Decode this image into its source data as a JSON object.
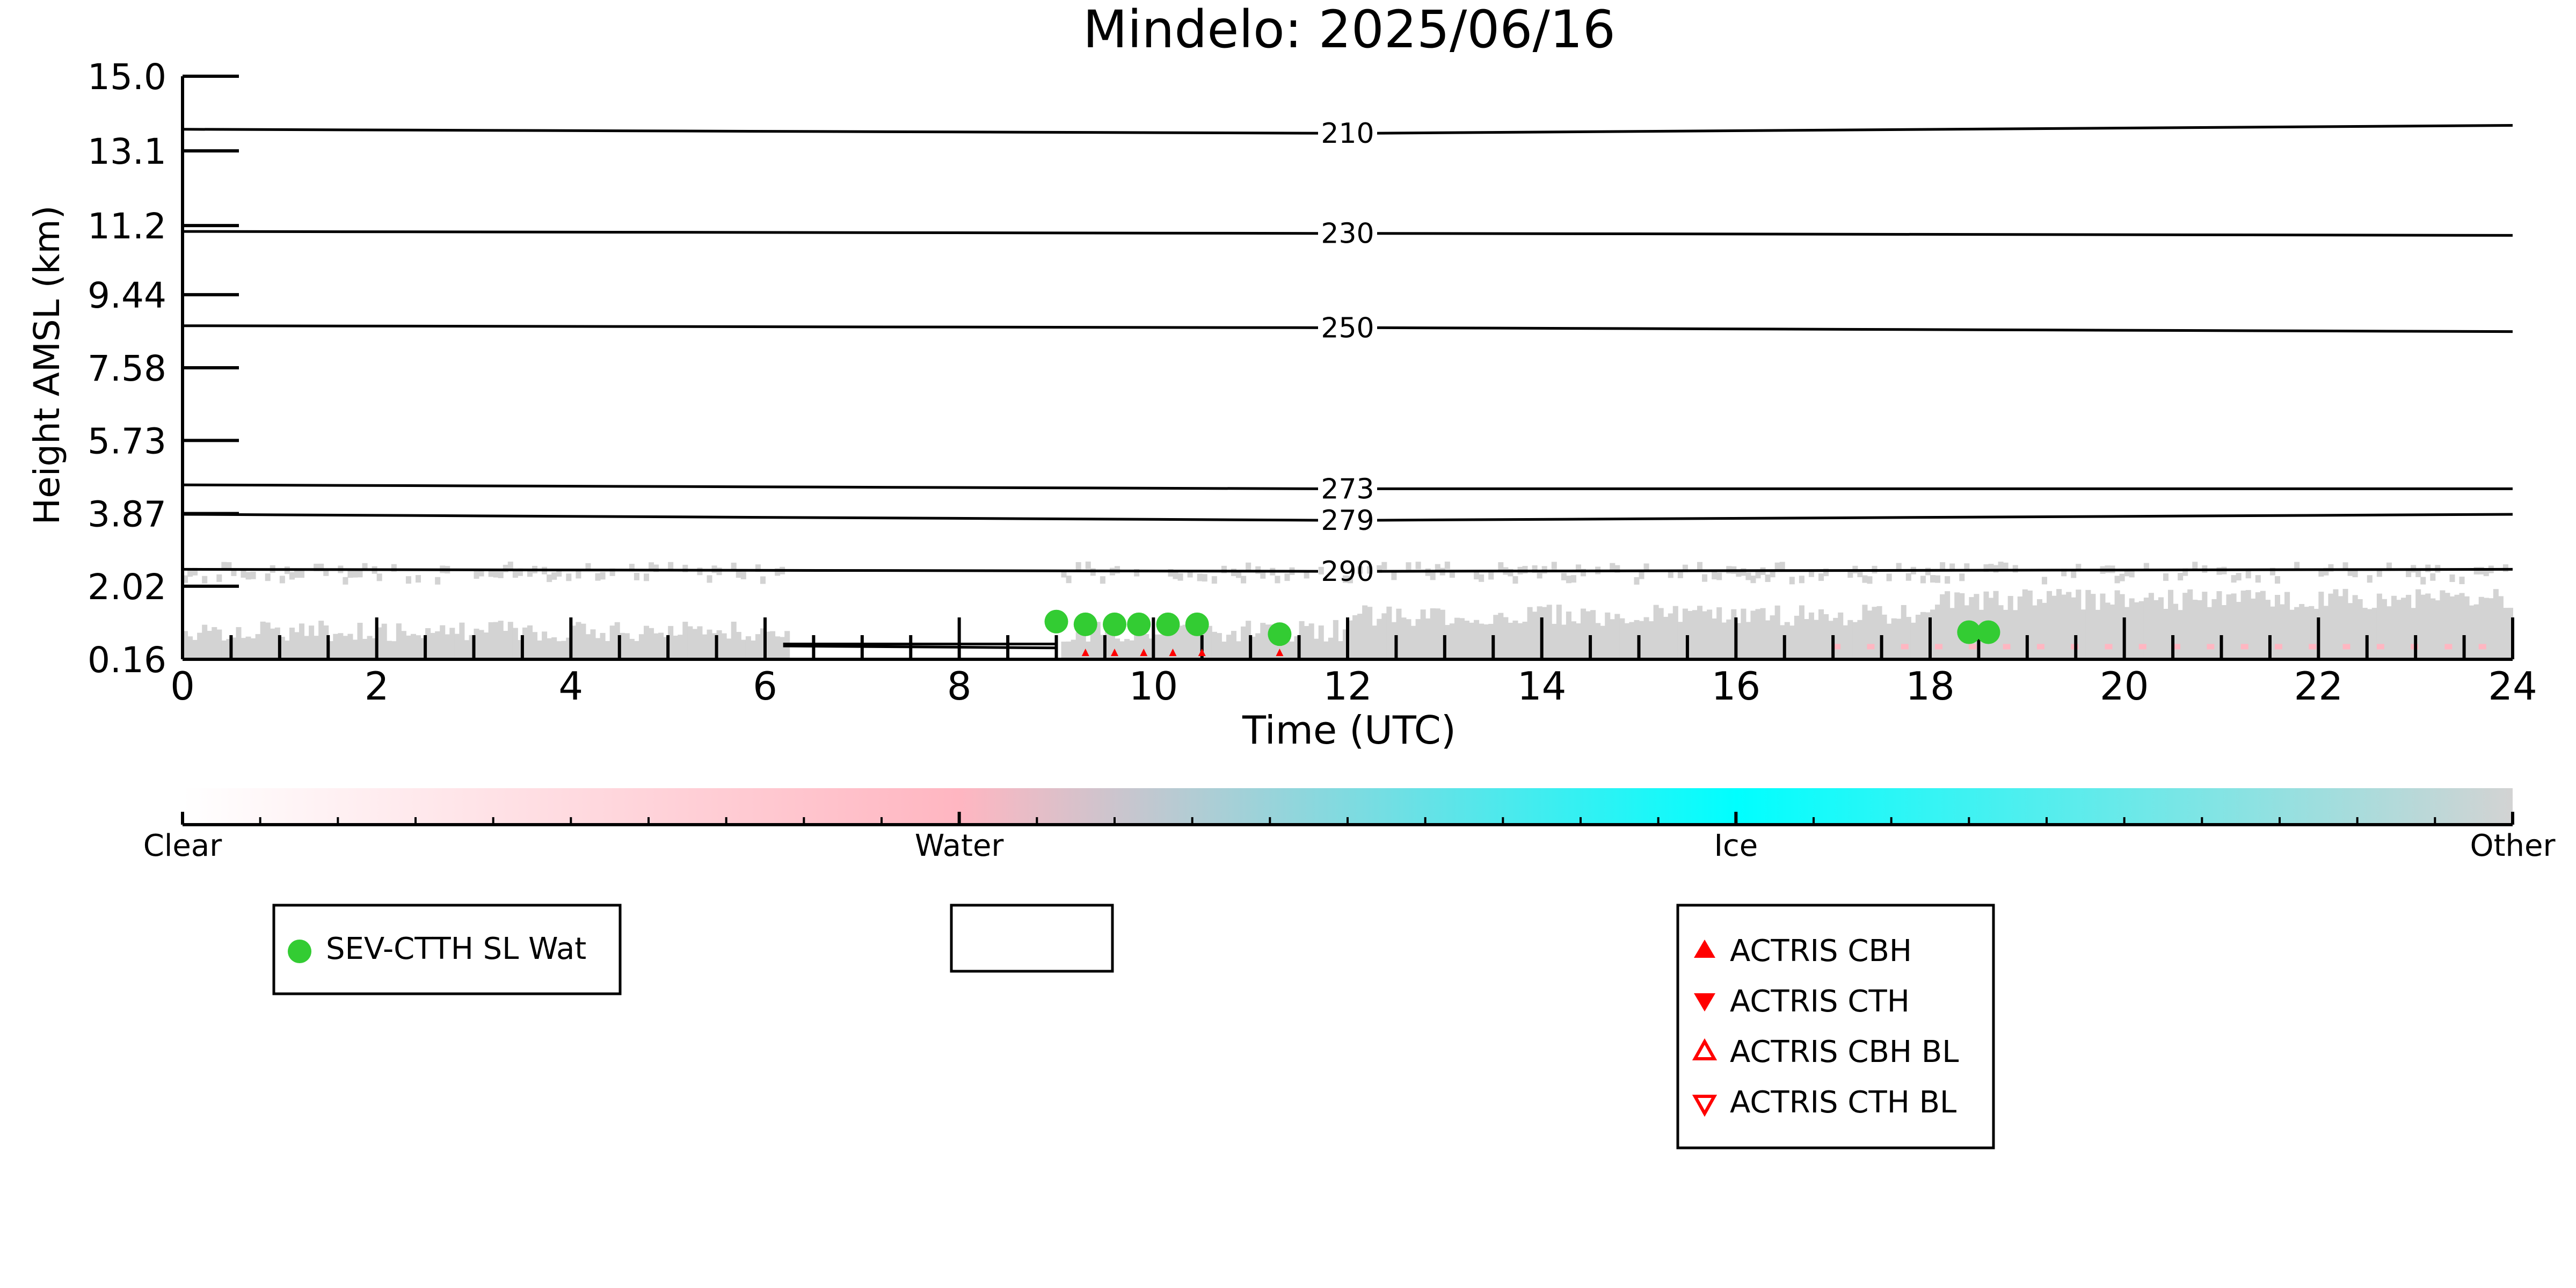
{
  "chart_data": {
    "type": "scatter",
    "title": "Mindelo: 2025/06/16",
    "xlabel": "Time (UTC)",
    "ylabel": "Height AMSL (km)",
    "xlim": [
      0,
      24
    ],
    "ylim": [
      0.16,
      15.0
    ],
    "x_ticks": [
      "0",
      "2",
      "4",
      "6",
      "8",
      "10",
      "12",
      "14",
      "16",
      "18",
      "20",
      "22",
      "24"
    ],
    "y_ticks": [
      "15.0",
      "13.1",
      "11.2",
      "9.44",
      "7.58",
      "5.73",
      "3.87",
      "2.02",
      "0.16"
    ],
    "y_tick_values": [
      15.0,
      13.1,
      11.2,
      9.44,
      7.58,
      5.73,
      3.87,
      2.02,
      0.16
    ],
    "isotherms": [
      {
        "label": "210",
        "y_left": 13.65,
        "y_mid": 13.55,
        "y_right": 13.75
      },
      {
        "label": "230",
        "y_left": 11.05,
        "y_mid": 11.0,
        "y_right": 10.95
      },
      {
        "label": "250",
        "y_left": 8.65,
        "y_mid": 8.6,
        "y_right": 8.5
      },
      {
        "label": "273",
        "y_left": 4.6,
        "y_mid": 4.5,
        "y_right": 4.5
      },
      {
        "label": "279",
        "y_left": 3.85,
        "y_mid": 3.7,
        "y_right": 3.85
      },
      {
        "label": "290",
        "y_left": 2.45,
        "y_mid": 2.4,
        "y_right": 2.45
      }
    ],
    "series": [
      {
        "name": "SEV-CTTH SL Wat",
        "color": "#33cc33",
        "x": [
          9.0,
          9.3,
          9.6,
          9.85,
          10.15,
          10.45,
          11.3,
          18.4,
          18.6
        ],
        "y": [
          1.12,
          1.05,
          1.05,
          1.05,
          1.05,
          1.05,
          0.8,
          0.85,
          0.85
        ]
      }
    ],
    "colorbar": {
      "labels": [
        "Clear",
        "Water",
        "Ice",
        "Other"
      ],
      "colors": [
        "#ffffff",
        "#ffb6c1",
        "#00ffff",
        "#d3d3d3"
      ]
    },
    "legends": [
      {
        "entries": [
          {
            "label": "SEV-CTTH SL Wat",
            "marker": "circle",
            "color": "#33cc33"
          }
        ]
      },
      {
        "entries": []
      },
      {
        "entries": [
          {
            "label": "ACTRIS CBH",
            "marker": "triangle-up-filled",
            "color": "#ff0000"
          },
          {
            "label": "ACTRIS CTH",
            "marker": "triangle-down-filled",
            "color": "#ff0000"
          },
          {
            "label": "ACTRIS CBH BL",
            "marker": "triangle-up-open",
            "color": "#ff0000"
          },
          {
            "label": "ACTRIS CTH BL",
            "marker": "triangle-down-open",
            "color": "#ff0000"
          }
        ]
      }
    ]
  }
}
